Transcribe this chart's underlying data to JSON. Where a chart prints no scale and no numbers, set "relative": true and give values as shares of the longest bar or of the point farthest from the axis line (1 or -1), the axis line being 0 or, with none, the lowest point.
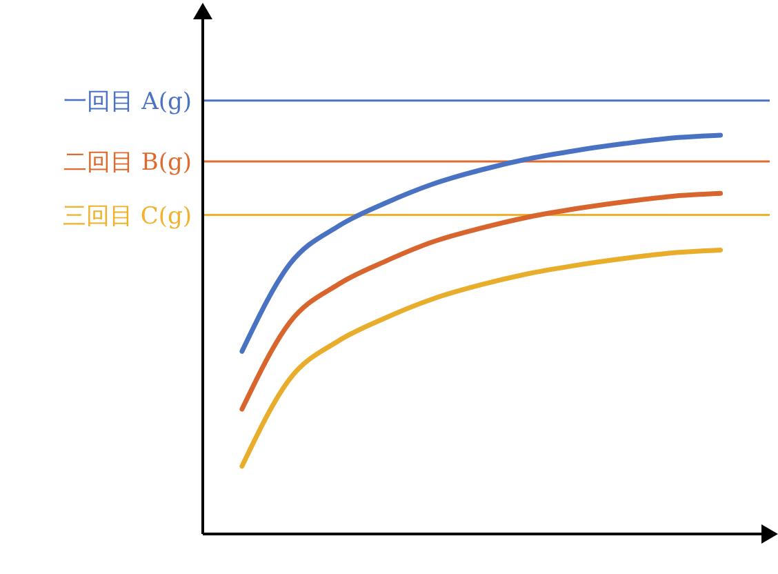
{
  "chart_data": {
    "type": "line",
    "relative": true,
    "marker": "none",
    "categories": [
      null,
      null,
      null,
      null,
      null,
      null,
      null,
      null,
      null,
      null,
      null
    ],
    "series": [
      {
        "color": "#4a72c2",
        "values": [
          0.458,
          0.677,
          0.771,
          0.83,
          0.878,
          0.913,
          0.941,
          0.962,
          0.979,
          0.993,
          1
        ]
      },
      {
        "color": "#d9652e",
        "values": [
          0.313,
          0.531,
          0.625,
          0.684,
          0.733,
          0.767,
          0.795,
          0.816,
          0.833,
          0.847,
          0.854
        ]
      },
      {
        "color": "#e9ad2c",
        "values": [
          0.17,
          0.389,
          0.483,
          0.542,
          0.59,
          0.625,
          0.653,
          0.674,
          0.691,
          0.705,
          0.712
        ]
      }
    ],
    "ref_lines": [
      {
        "axis": "y",
        "value": 1.087,
        "label": "一回目 A(g)",
        "color": "#4a72c2"
      },
      {
        "axis": "y",
        "value": 0.934,
        "label": "二回目 B(g)",
        "color": "#e0692d"
      },
      {
        "axis": "y",
        "value": 0.8,
        "label": "三回目 C(g)",
        "color": "#f1b12b"
      }
    ]
  }
}
